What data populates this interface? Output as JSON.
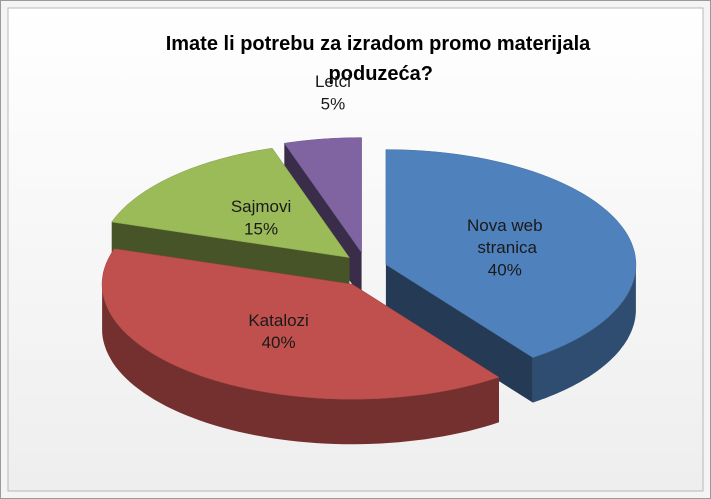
{
  "chart_data": {
    "type": "pie",
    "title": "Imate li potrebu za izradom promo materijala poduzeća?",
    "categories": [
      "Nova web stranica",
      "Katalozi",
      "Sajmovi",
      "Letci"
    ],
    "values": [
      40,
      40,
      15,
      5
    ],
    "value_labels": [
      "40%",
      "40%",
      "15%",
      "5%"
    ],
    "colors": [
      "#4f81bd",
      "#c0504d",
      "#9bbb59",
      "#8064a2"
    ]
  }
}
